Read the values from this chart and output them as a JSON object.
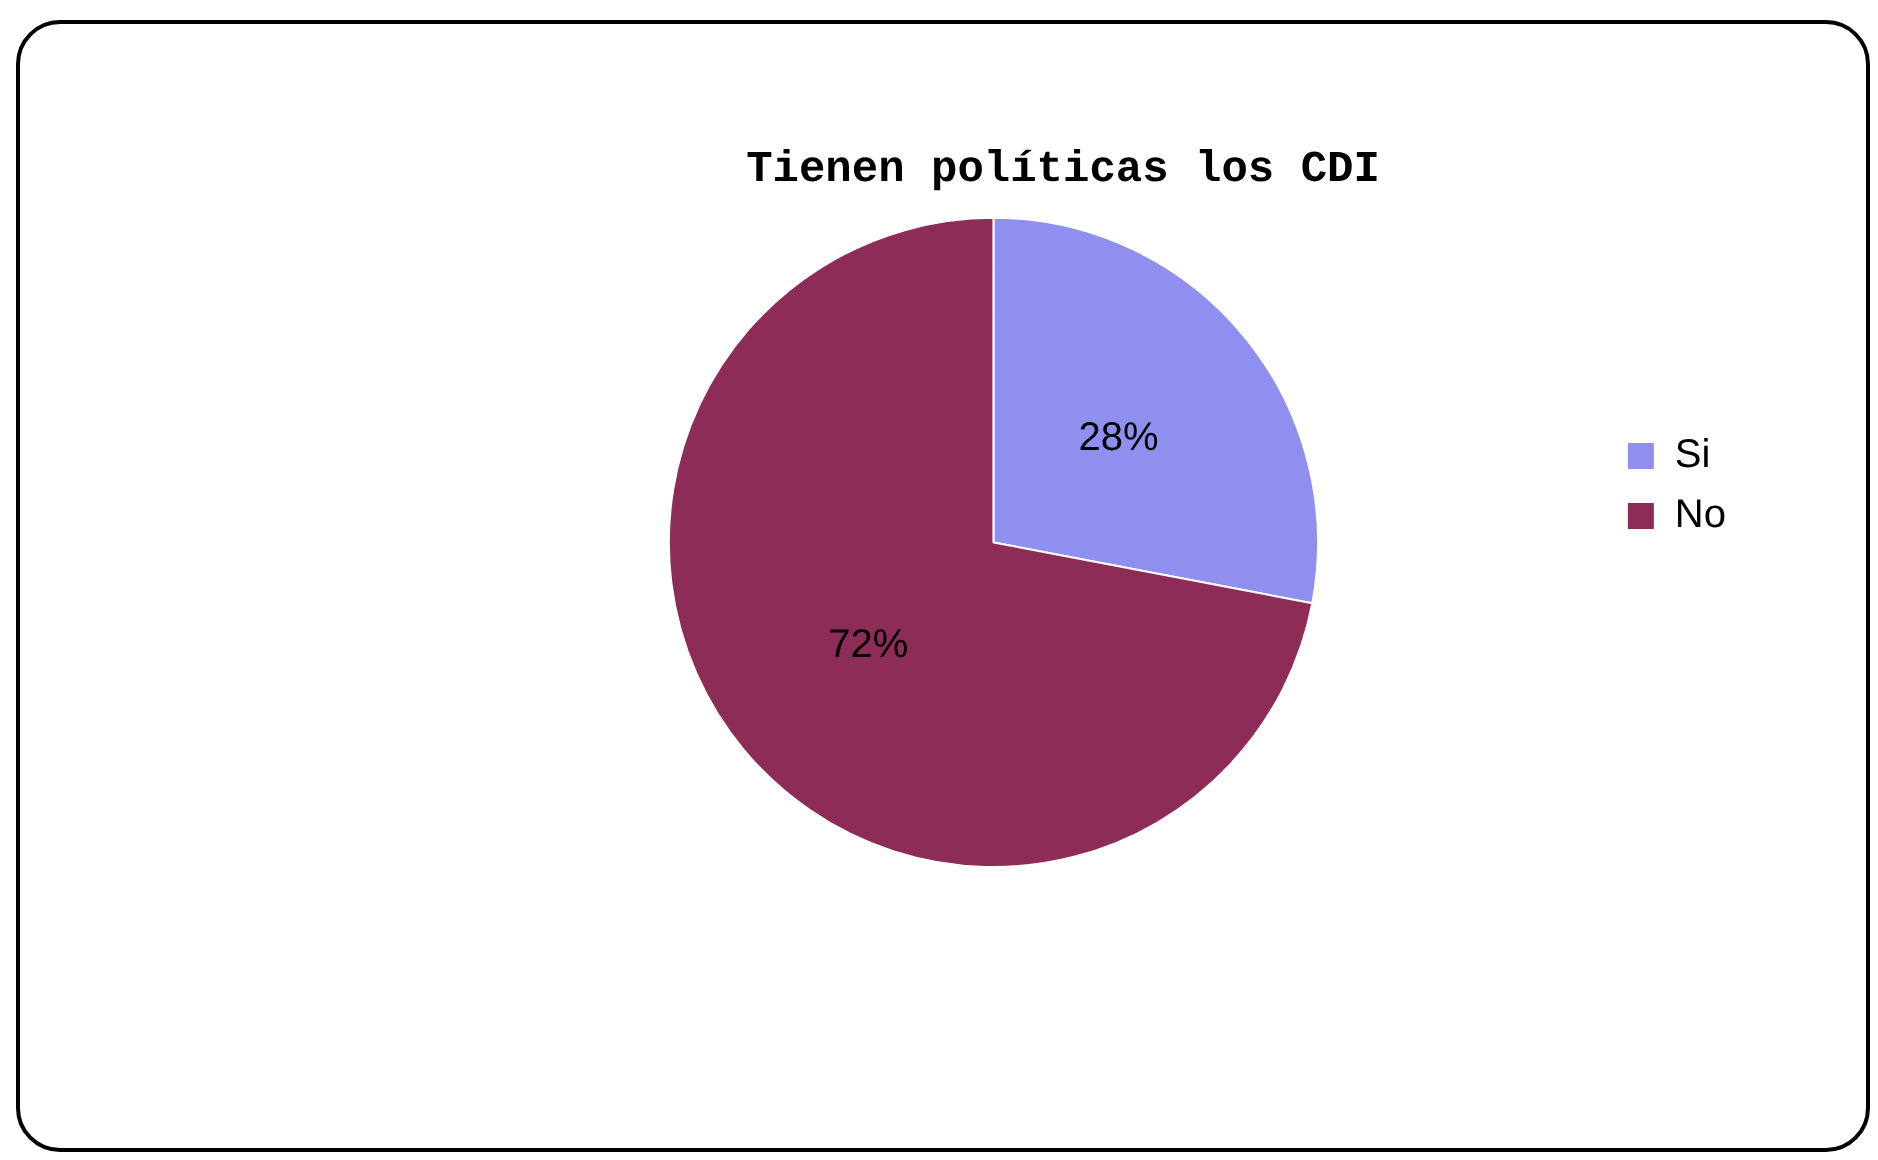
{
  "chart_data": {
    "type": "pie",
    "title": "Tienen políticas los CDI",
    "categories": [
      "Si",
      "No"
    ],
    "values": [
      28,
      72
    ],
    "colors": [
      "#8f8ff0",
      "#8e2c58"
    ],
    "value_labels": [
      "28%",
      "72%"
    ],
    "legend": "right"
  }
}
